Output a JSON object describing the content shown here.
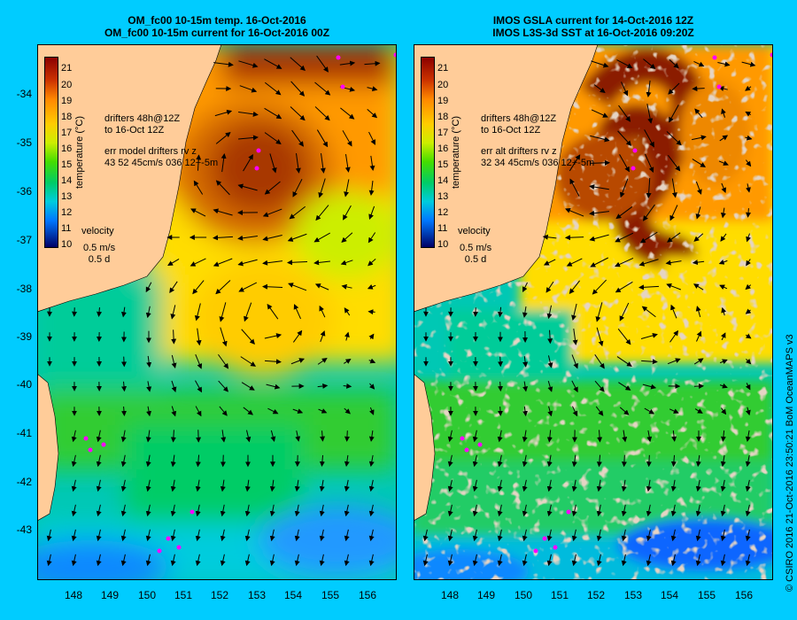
{
  "left": {
    "title_line1": "OM_fc00 10-15m temp. 16-Oct-2016",
    "title_line2": "OM_fc00 10-15m current for 16-Oct-2016 00Z",
    "note_line1": "drifters 48h@12Z",
    "note_line2": "to 16-Oct 12Z",
    "err_line1": "err model drifters rv z",
    "err_line2": "43 52 45cm/s 036 12+-5m"
  },
  "right": {
    "title_line1": "IMOS GSLA current for 14-Oct-2016 12Z",
    "title_line2": "IMOS L3S-3d SST at 16-Oct-2016 09:20Z",
    "note_line1": "drifters 48h@12Z",
    "note_line2": "to 16-Oct 12Z",
    "err_line1": "err alt drifters rv z",
    "err_line2": "32 34 45cm/s 036 12+-5m"
  },
  "velocity": {
    "label": "velocity",
    "speed": "0.5 m/s",
    "time": "0.5 d"
  },
  "colorbar": {
    "title": "temperature (°C)",
    "ticks": [
      "21",
      "20",
      "19",
      "18",
      "17",
      "16",
      "15",
      "14",
      "13",
      "12",
      "11",
      "10"
    ]
  },
  "lat_labels": [
    "-34",
    "-35",
    "-36",
    "-37",
    "-38",
    "-39",
    "-40",
    "-41",
    "-42",
    "-43"
  ],
  "lon_labels": [
    "148",
    "149",
    "150",
    "151",
    "152",
    "153",
    "154",
    "155",
    "156"
  ],
  "credit": "© CSIRO 2016   21-Oct-2016 23:50:21 BoM OceanMAPS v3",
  "colors": {
    "background": "#00ccff",
    "land": "#ffcc99",
    "drifters": "#ff00ff"
  }
}
